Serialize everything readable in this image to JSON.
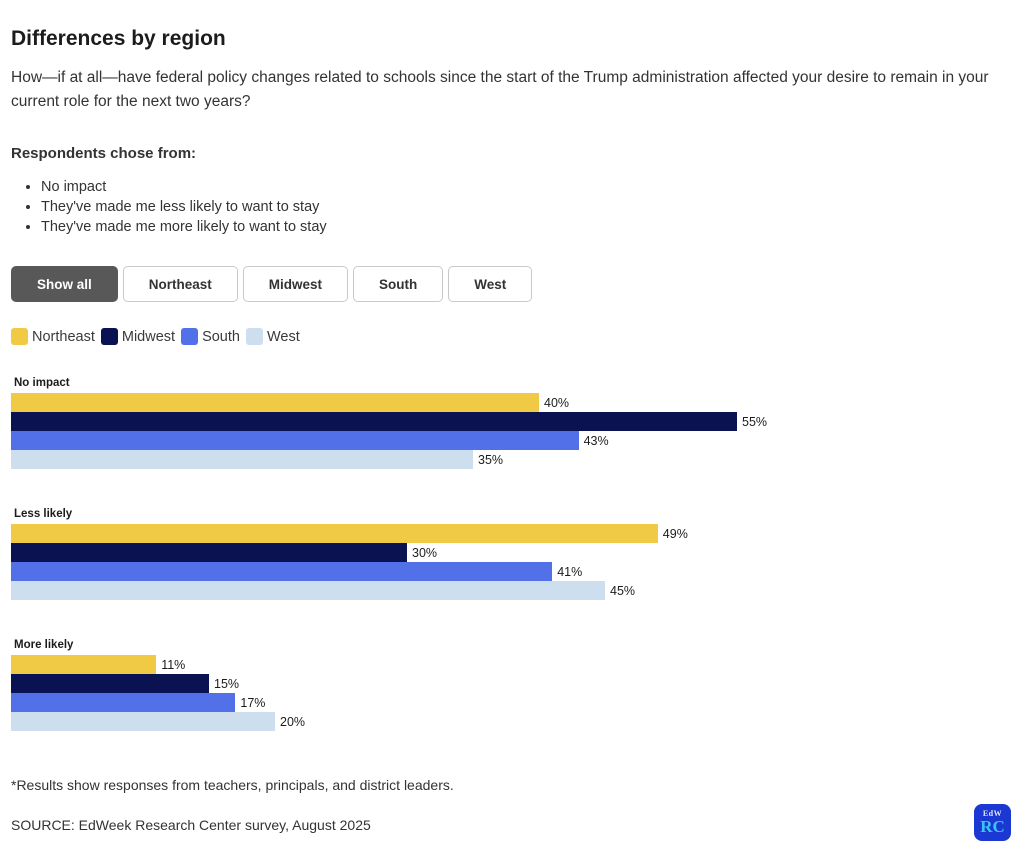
{
  "header": {
    "title": "Differences by region",
    "question": "How—if at all—have federal policy changes related to schools since the start of the Trump administration affected your desire to remain in your current role for the next two years?"
  },
  "respondents": {
    "label": "Respondents chose from:",
    "options": [
      "No impact",
      "They've made me less likely to want to stay",
      "They've made me more likely to want to stay"
    ]
  },
  "filters": [
    {
      "label": "Show all",
      "active": true
    },
    {
      "label": "Northeast",
      "active": false
    },
    {
      "label": "Midwest",
      "active": false
    },
    {
      "label": "South",
      "active": false
    },
    {
      "label": "West",
      "active": false
    }
  ],
  "legend": [
    {
      "label": "Northeast",
      "color": "#f0ca44"
    },
    {
      "label": "Midwest",
      "color": "#0a1252"
    },
    {
      "label": "South",
      "color": "#5271e8"
    },
    {
      "label": "West",
      "color": "#cddeee"
    }
  ],
  "chart_data": {
    "type": "bar",
    "orientation": "horizontal",
    "unit": "%",
    "value_labels": true,
    "grid": false,
    "categories": [
      "No impact",
      "Less likely",
      "More likely"
    ],
    "series": [
      {
        "name": "Northeast",
        "color": "#f0ca44",
        "values": [
          40,
          49,
          11
        ]
      },
      {
        "name": "Midwest",
        "color": "#0a1252",
        "values": [
          55,
          30,
          15
        ]
      },
      {
        "name": "South",
        "color": "#5271e8",
        "values": [
          43,
          41,
          17
        ]
      },
      {
        "name": "West",
        "color": "#cddeee",
        "values": [
          35,
          45,
          20
        ]
      }
    ]
  },
  "footer": {
    "footnote": "*Results show responses from teachers, principals, and district leaders.",
    "source": "SOURCE: EdWeek Research Center survey, August 2025",
    "logo": {
      "top": "EdW",
      "bottom": "RC",
      "bg_color": "#1c38d2",
      "accent_color": "#38c6f4"
    }
  }
}
